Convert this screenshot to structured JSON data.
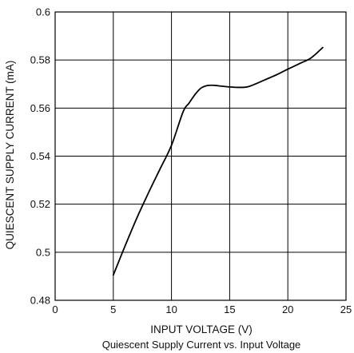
{
  "chart_data": {
    "type": "line",
    "title": "Quiescent Supply Current vs. Input Voltage",
    "xlabel": "INPUT VOLTAGE (V)",
    "ylabel": "QUIESCENT SUPPLY CURRENT (mA)",
    "xlim": [
      0,
      25
    ],
    "ylim": [
      0.48,
      0.6
    ],
    "xticks": [
      0,
      5,
      10,
      15,
      20,
      25
    ],
    "xtick_labels": [
      "0",
      "5",
      "10",
      "15",
      "20",
      "25"
    ],
    "yticks": [
      0.48,
      0.5,
      0.52,
      0.54,
      0.56,
      0.58,
      0.6
    ],
    "ytick_labels": [
      "0.48",
      "0.5",
      "0.52",
      "0.54",
      "0.56",
      "0.58",
      "0.6"
    ],
    "grid": true,
    "colors": {
      "line": "#000000",
      "grid": "#000000",
      "frame": "#000000"
    },
    "series": [
      {
        "x": [
          5,
          6,
          7,
          8,
          9,
          10,
          11,
          11.5,
          12,
          12.5,
          13,
          13.5,
          14,
          15,
          16,
          16.5,
          17,
          18,
          19,
          20,
          21,
          22,
          23
        ],
        "values": [
          0.4905,
          0.5025,
          0.514,
          0.5245,
          0.5345,
          0.5445,
          0.5585,
          0.562,
          0.5655,
          0.5682,
          0.5693,
          0.5695,
          0.5693,
          0.5688,
          0.5686,
          0.5688,
          0.5696,
          0.5717,
          0.5738,
          0.5762,
          0.5785,
          0.5809,
          0.5852
        ]
      }
    ]
  }
}
